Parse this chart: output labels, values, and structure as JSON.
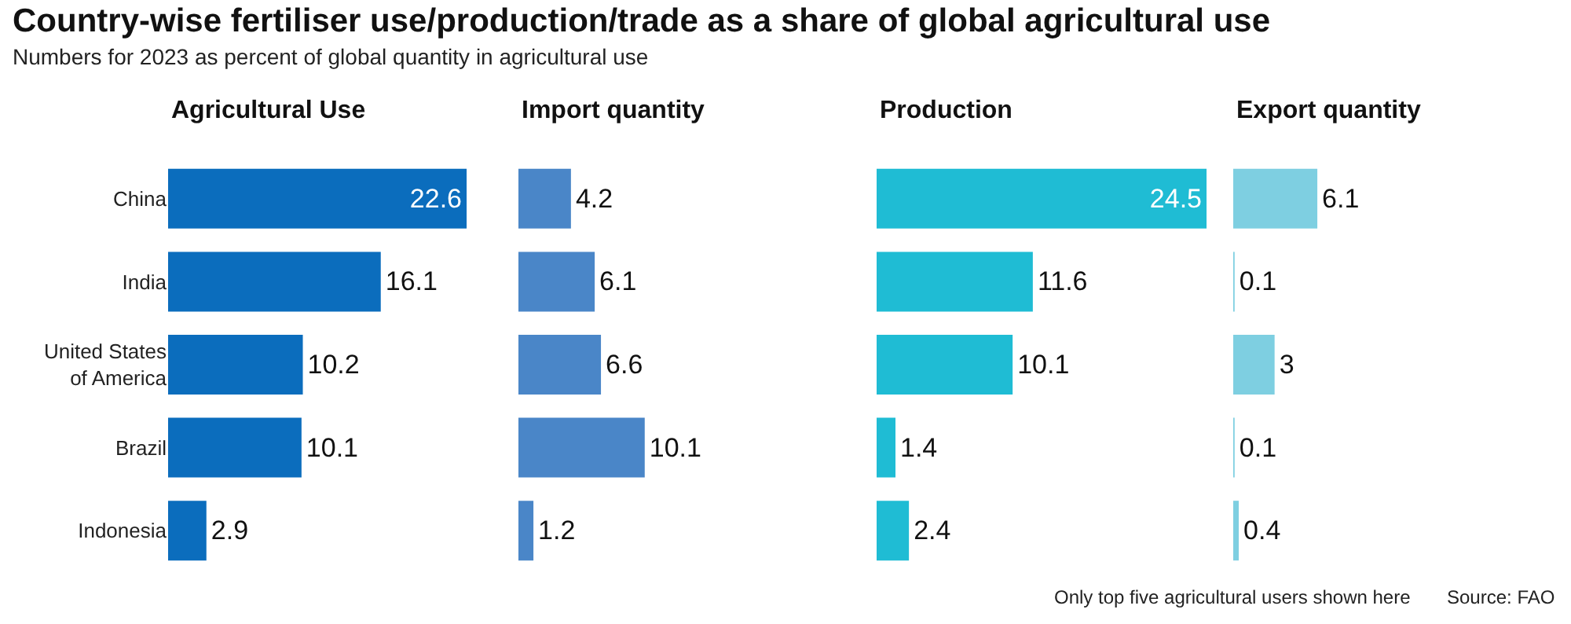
{
  "chart_data": [
    {
      "type": "other",
      "title": "Country-wise fertiliser use/production/trade as a share of global agricultural use",
      "subtitle": "Numbers for 2023 as percent of global quantity in agricultural use"
    },
    {
      "type": "bar",
      "orientation": "horizontal",
      "title": "Agricultural Use",
      "categories": [
        "China",
        "India",
        "United States of America",
        "Brazil",
        "Indonesia"
      ],
      "values": [
        22.6,
        16.1,
        10.2,
        10.1,
        2.9
      ],
      "color": "#0b6dbd",
      "data_labels": true,
      "tick_labels": "y",
      "grid": false,
      "legend": false
    },
    {
      "type": "bar",
      "orientation": "horizontal",
      "title": "Import quantity",
      "categories": [
        null,
        null,
        null,
        null,
        null
      ],
      "values": [
        4.2,
        6.1,
        6.6,
        10.1,
        1.2
      ],
      "color": "#4a86c8",
      "data_labels": true,
      "tick_labels": false,
      "grid": false,
      "legend": false
    },
    {
      "type": "bar",
      "orientation": "horizontal",
      "title": "Production",
      "categories": [
        null,
        null,
        null,
        null,
        null
      ],
      "values": [
        24.5,
        11.6,
        10.1,
        1.4,
        2.4
      ],
      "color": "#1fbcd4",
      "data_labels": true,
      "tick_labels": false,
      "grid": false,
      "legend": false
    },
    {
      "type": "bar",
      "orientation": "horizontal",
      "title": "Export quantity",
      "categories": [
        null,
        null,
        null,
        null,
        null
      ],
      "values": [
        6.1,
        0.1,
        3,
        0.1,
        0.4
      ],
      "color": "#7ecfe1",
      "data_labels": true,
      "tick_labels": false,
      "grid": false,
      "legend": false,
      "annotations": [
        "Only top five agricultural users shown here",
        "Source: FAO"
      ]
    }
  ]
}
